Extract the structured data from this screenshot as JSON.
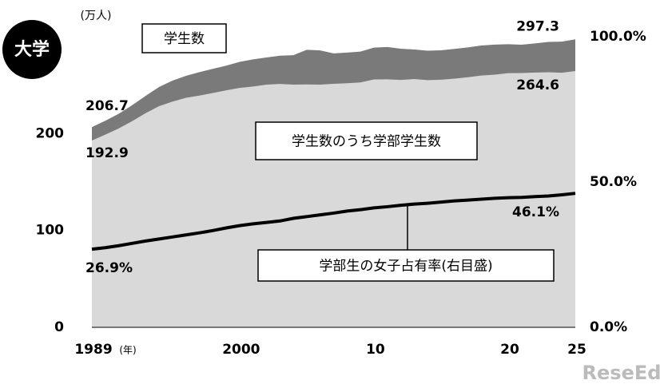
{
  "chart_data": {
    "type": "area",
    "badge": "大学",
    "y_label": "(万人)",
    "x_label": "(年)",
    "watermark": "ReseEd",
    "x": [
      1989,
      1990,
      1991,
      1992,
      1993,
      1994,
      1995,
      1996,
      1997,
      1998,
      1999,
      2000,
      2001,
      2002,
      2003,
      2004,
      2005,
      2006,
      2007,
      2008,
      2009,
      2010,
      2011,
      2012,
      2013,
      2014,
      2015,
      2016,
      2017,
      2018,
      2019,
      2020,
      2021,
      2022,
      2023,
      2024,
      2025
    ],
    "xlim": [
      1989,
      2025
    ],
    "xticks": [
      1989,
      2000,
      {
        "value": 2010,
        "label": "10"
      },
      {
        "value": 2020,
        "label": "20"
      },
      {
        "value": 2025,
        "label": "25"
      }
    ],
    "ylim": [
      0,
      300
    ],
    "yticks": [
      0,
      100,
      200
    ],
    "y2lim": [
      0,
      100
    ],
    "y2ticks": [
      {
        "value": 0,
        "label": "0.0%"
      },
      {
        "value": 50,
        "label": "50.0%"
      },
      {
        "value": 100,
        "label": "100.0%"
      }
    ],
    "series": [
      {
        "name": "学生数",
        "color": "#7a7a7a",
        "values": [
          206.7,
          213.3,
          220.5,
          229.3,
          238.9,
          248.1,
          254.7,
          259.6,
          263.4,
          266.8,
          270.1,
          274.0,
          276.6,
          278.6,
          280.4,
          280.9,
          286.5,
          285.9,
          282.8,
          283.6,
          284.6,
          288.8,
          289.4,
          287.6,
          286.8,
          285.6,
          286.0,
          287.4,
          289.0,
          290.9,
          291.9,
          292.3,
          291.8,
          293.1,
          294.6,
          295.0,
          297.3
        ],
        "value_labels": [
          "206.7",
          null,
          null,
          null,
          null,
          null,
          null,
          null,
          null,
          null,
          null,
          null,
          null,
          null,
          null,
          null,
          null,
          null,
          null,
          null,
          null,
          null,
          null,
          null,
          null,
          null,
          null,
          null,
          null,
          null,
          null,
          null,
          null,
          null,
          null,
          null,
          "297.3"
        ]
      },
      {
        "name": "学生数のうち学部学生数",
        "color": "#d9d9d9",
        "values": [
          192.9,
          198.9,
          205.3,
          212.8,
          221.1,
          228.3,
          233.0,
          236.9,
          239.2,
          241.9,
          244.7,
          247.1,
          248.6,
          250.6,
          251.3,
          250.5,
          250.8,
          250.5,
          251.4,
          252.0,
          252.8,
          255.9,
          256.0,
          255.4,
          256.3,
          255.2,
          255.6,
          256.7,
          258.2,
          259.9,
          260.9,
          262.4,
          262.5,
          263.0,
          263.3,
          262.8,
          264.6
        ],
        "value_labels": [
          "192.9",
          null,
          null,
          null,
          null,
          null,
          null,
          null,
          null,
          null,
          null,
          null,
          null,
          null,
          null,
          null,
          null,
          null,
          null,
          null,
          null,
          null,
          null,
          null,
          null,
          null,
          null,
          null,
          null,
          null,
          null,
          null,
          null,
          null,
          null,
          null,
          "264.6"
        ]
      },
      {
        "name": "学部生の女子占有率(右目盛)",
        "color": "#000000",
        "type": "line",
        "axis": "y2",
        "values": [
          26.9,
          27.4,
          28.1,
          28.9,
          29.7,
          30.4,
          31.1,
          31.8,
          32.5,
          33.3,
          34.2,
          35.0,
          35.6,
          36.1,
          36.6,
          37.5,
          38.1,
          38.7,
          39.3,
          40.0,
          40.5,
          41.1,
          41.5,
          42.0,
          42.4,
          42.7,
          43.1,
          43.5,
          43.8,
          44.1,
          44.4,
          44.6,
          44.7,
          45.0,
          45.2,
          45.6,
          46.1
        ],
        "value_labels": [
          "26.9%",
          null,
          null,
          null,
          null,
          null,
          null,
          null,
          null,
          null,
          null,
          null,
          null,
          null,
          null,
          null,
          null,
          null,
          null,
          null,
          null,
          null,
          null,
          null,
          null,
          null,
          null,
          null,
          null,
          null,
          null,
          null,
          null,
          null,
          null,
          null,
          "46.1%"
        ]
      }
    ]
  }
}
